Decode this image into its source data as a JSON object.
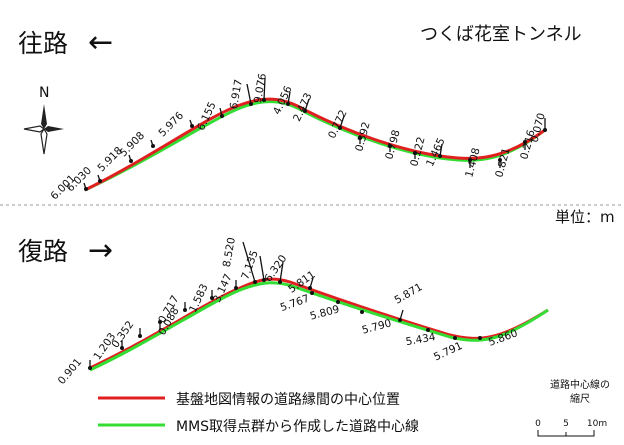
{
  "outbound": {
    "title": "往路",
    "arrow": "←",
    "tunnel_name": "つくば花室トンネル",
    "unit_label": "単位：m",
    "labels": [
      "6.001",
      "6.030",
      "5.918",
      "5.908",
      "5.976",
      "6.155",
      "6.917",
      "9.076",
      "4.056",
      "2.473",
      "0.772",
      "0.392",
      "0.798",
      "0.122",
      "1.465",
      "1.408",
      "0.821",
      "0.216",
      "0.070"
    ]
  },
  "return": {
    "title": "復路",
    "arrow": "→",
    "labels": [
      "0.901",
      "1.203",
      "0.352",
      "0.088",
      "0.717",
      "1.583",
      "3.147",
      "8.520",
      "7.135",
      "6.320",
      "5.811",
      "5.767",
      "5.809",
      "5.790",
      "5.871",
      "5.434",
      "5.791",
      "5.860"
    ]
  },
  "compass": {
    "north_label": "N"
  },
  "legend": [
    {
      "label": "基盤地図情報の道路縁間の中心位置",
      "color": "#e02020"
    },
    {
      "label": "MMS取得点群から作成した道路中心線",
      "color": "#33dd33"
    }
  ],
  "scale_bar": {
    "title": "道路中心線の",
    "subtitle": "縮尺",
    "ticks": [
      "0",
      "5",
      "10m"
    ]
  },
  "colors": {
    "red": "#e02020",
    "green": "#33dd33",
    "marker": "#111111"
  }
}
